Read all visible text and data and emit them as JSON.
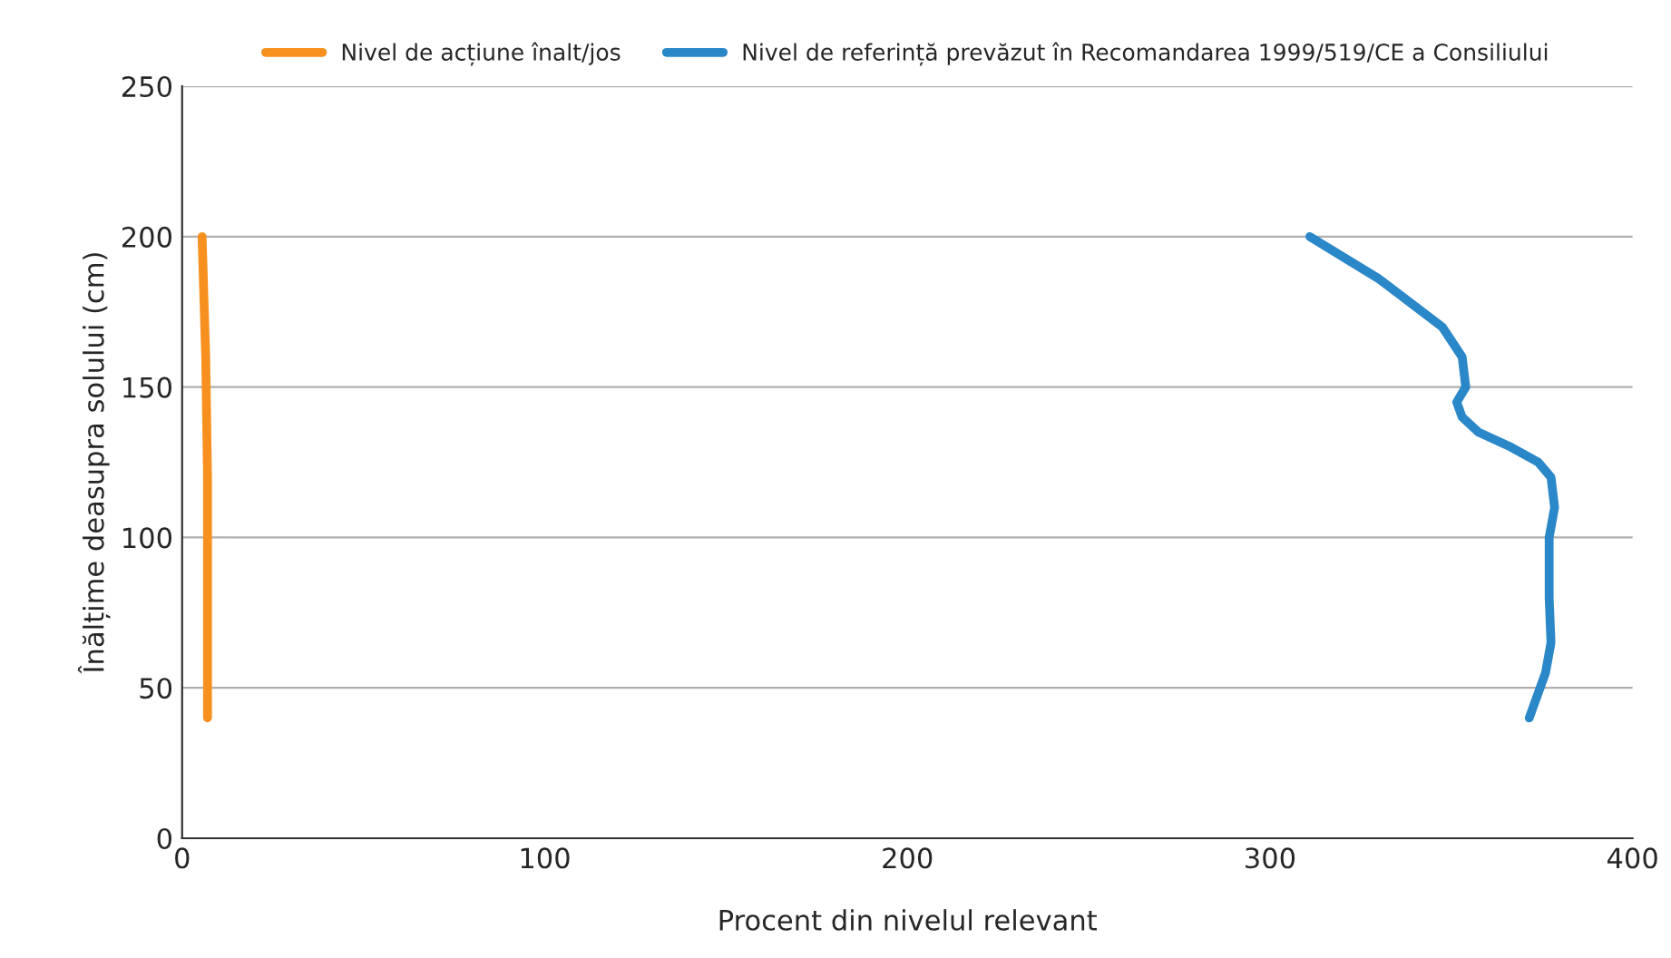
{
  "chart_data": {
    "type": "line",
    "xlabel": "Procent din nivelul relevant",
    "ylabel": "Înălțime deasupra solului (cm)",
    "series": [
      {
        "name": "Nivel de acțiune înalt/jos",
        "color": "#f7901e",
        "x": [
          5.5,
          6,
          6.5,
          7,
          7,
          7,
          7
        ],
        "values": [
          200,
          180,
          160,
          120,
          80,
          60,
          40
        ]
      },
      {
        "name": "Nivel de referință prevăzut în Recomandarea 1999/519/CE a Consiliului",
        "color": "#2a87c8",
        "x": [
          311,
          330,
          347.5,
          353,
          354,
          351.5,
          353,
          357.5,
          366.5,
          374,
          377.5,
          378.5,
          377,
          377,
          377.5,
          376,
          371.5
        ],
        "values": [
          200,
          186,
          170,
          160,
          150,
          145,
          140,
          135,
          130,
          125,
          120,
          110,
          100,
          80,
          65,
          55,
          40
        ]
      }
    ],
    "xlim": [
      0,
      400
    ],
    "xticks": [
      0,
      100,
      200,
      300,
      400
    ],
    "ylim": [
      0,
      250
    ],
    "yticks": [
      0,
      50,
      100,
      150,
      200,
      250
    ],
    "grid": "y",
    "legend": "top",
    "line_style": "solid"
  }
}
